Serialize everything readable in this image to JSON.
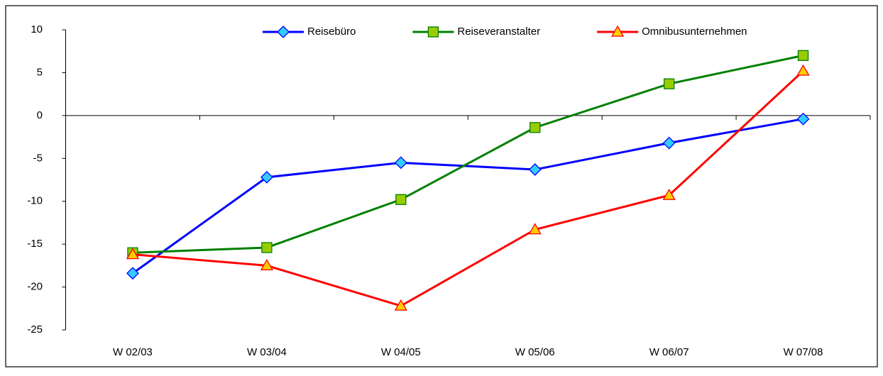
{
  "chart_data": {
    "type": "line",
    "categories": [
      "W 02/03",
      "W 03/04",
      "W 04/05",
      "W 05/06",
      "W 06/07",
      "W 07/08"
    ],
    "series": [
      {
        "name": "Reisebüro",
        "color": "#0000ff",
        "marker": "diamond",
        "marker_color": "#33ccff",
        "values": [
          -18.4,
          -7.2,
          -5.5,
          -6.3,
          -3.2,
          -0.4
        ]
      },
      {
        "name": "Reiseveranstalter",
        "color": "#008000",
        "marker": "square",
        "marker_color": "#99cc00",
        "values": [
          -16,
          -15.4,
          -9.8,
          -1.4,
          3.7,
          7
        ]
      },
      {
        "name": "Omnibusunternehmen",
        "color": "#ff0000",
        "marker": "triangle",
        "marker_color": "#ffcc00",
        "values": [
          -16.2,
          -17.5,
          -22.2,
          -13.3,
          -9.3,
          5.2
        ]
      }
    ],
    "ylim": [
      -25,
      10
    ],
    "yticks": [
      -25,
      -20,
      -15,
      -10,
      -5,
      0,
      5,
      10
    ],
    "legend": "top"
  }
}
